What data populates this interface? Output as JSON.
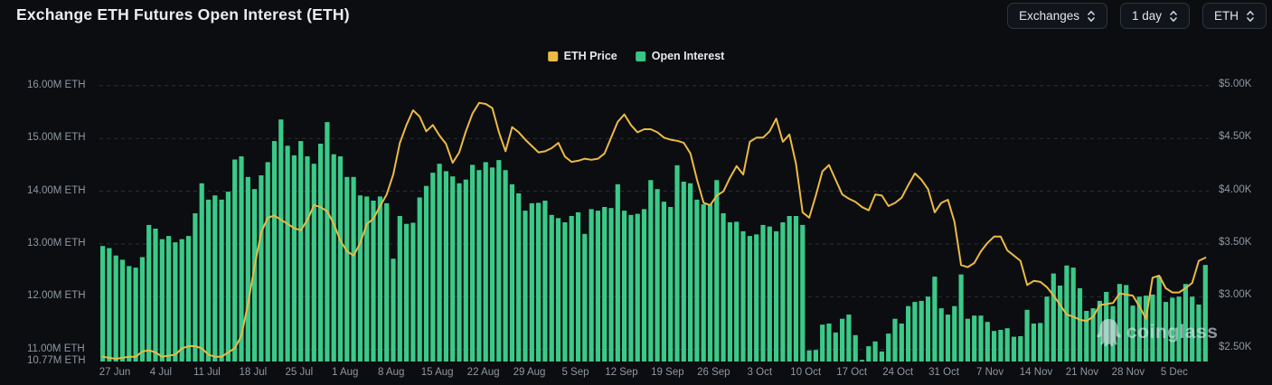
{
  "header": {
    "title": "Exchange ETH Futures Open Interest (ETH)"
  },
  "controls": [
    {
      "label": "Exchanges"
    },
    {
      "label": "1 day"
    },
    {
      "label": "ETH"
    }
  ],
  "legend": [
    {
      "label": "ETH Price",
      "color": "#ecba45"
    },
    {
      "label": "Open Interest",
      "color": "#38c783"
    }
  ],
  "watermark": {
    "text": "coinglass"
  },
  "colors": {
    "background": "#0b0d10",
    "gridline": "#2a2f37",
    "axis_text": "#8f97a1",
    "title_text": "#eaecef",
    "bar_green": "#3bc988",
    "line_yellow": "#ecba45"
  },
  "chart_data": {
    "type": "bar",
    "subtype": "bar+line dual-axis time series",
    "title": "Exchange ETH Futures Open Interest (ETH)",
    "interval": "daily",
    "x_start": "27 Jun",
    "x_end": "11 Dec",
    "grid": "horizontal dashed",
    "legend_position": "top-center",
    "x_tick_labels": [
      "27 Jun",
      "4 Jul",
      "11 Jul",
      "18 Jul",
      "25 Jul",
      "1 Aug",
      "8 Aug",
      "15 Aug",
      "22 Aug",
      "29 Aug",
      "5 Sep",
      "12 Sep",
      "19 Sep",
      "26 Sep",
      "3 Oct",
      "10 Oct",
      "17 Oct",
      "24 Oct",
      "31 Oct",
      "7 Nov",
      "14 Nov",
      "21 Nov",
      "28 Nov",
      "5 Dec"
    ],
    "left_axis": {
      "name": "Open Interest",
      "unit": "M ETH",
      "min": 10.77,
      "max": 16.0,
      "ticks": [
        {
          "label": "16.00M ETH",
          "value": 16.0,
          "grid": true
        },
        {
          "label": "15.00M ETH",
          "value": 15.0,
          "grid": true
        },
        {
          "label": "14.00M ETH",
          "value": 14.0,
          "grid": true
        },
        {
          "label": "13.00M ETH",
          "value": 13.0,
          "grid": true
        },
        {
          "label": "12.00M ETH",
          "value": 12.0,
          "grid": true
        },
        {
          "label": "11.00M ETH",
          "value": 11.0,
          "grid": true
        },
        {
          "label": "10.77M ETH",
          "value": 10.77,
          "grid": false
        }
      ]
    },
    "right_axis": {
      "name": "ETH Price",
      "unit": "$K",
      "min": 2.5,
      "max": 5.0,
      "ticks": [
        {
          "label": "$5.00K",
          "value": 5.0
        },
        {
          "label": "$4.50K",
          "value": 4.5
        },
        {
          "label": "$4.00K",
          "value": 4.0
        },
        {
          "label": "$3.50K",
          "value": 3.5
        },
        {
          "label": "$3.00K",
          "value": 3.0
        },
        {
          "label": "$2.50K",
          "value": 2.5
        }
      ]
    },
    "series": [
      {
        "name": "ETH Price",
        "type": "line",
        "axis": "right",
        "unit": "$K",
        "color": "#ecba45",
        "values": [
          2.42,
          2.41,
          2.4,
          2.41,
          2.42,
          2.42,
          2.47,
          2.48,
          2.46,
          2.42,
          2.43,
          2.44,
          2.5,
          2.52,
          2.52,
          2.5,
          2.44,
          2.42,
          2.42,
          2.46,
          2.5,
          2.62,
          2.92,
          3.28,
          3.6,
          3.74,
          3.76,
          3.72,
          3.68,
          3.64,
          3.62,
          3.72,
          3.86,
          3.84,
          3.8,
          3.68,
          3.52,
          3.42,
          3.38,
          3.5,
          3.68,
          3.73,
          3.85,
          3.96,
          4.15,
          4.45,
          4.62,
          4.76,
          4.7,
          4.56,
          4.62,
          4.52,
          4.44,
          4.26,
          4.36,
          4.56,
          4.73,
          4.83,
          4.82,
          4.78,
          4.55,
          4.37,
          4.6,
          4.55,
          4.48,
          4.42,
          4.36,
          4.37,
          4.4,
          4.45,
          4.32,
          4.27,
          4.28,
          4.3,
          4.29,
          4.3,
          4.35,
          4.5,
          4.65,
          4.72,
          4.62,
          4.55,
          4.58,
          4.58,
          4.55,
          4.5,
          4.48,
          4.47,
          4.45,
          4.35,
          4.1,
          3.88,
          3.86,
          3.95,
          3.99,
          4.12,
          4.23,
          4.15,
          4.46,
          4.5,
          4.5,
          4.56,
          4.68,
          4.46,
          4.53,
          4.25,
          3.79,
          3.74,
          3.95,
          4.18,
          4.24,
          4.1,
          3.96,
          3.92,
          3.89,
          3.84,
          3.81,
          3.96,
          3.95,
          3.85,
          3.88,
          3.93,
          4.05,
          4.16,
          4.1,
          4.01,
          3.79,
          3.88,
          3.91,
          3.7,
          3.29,
          3.27,
          3.31,
          3.42,
          3.5,
          3.56,
          3.56,
          3.43,
          3.38,
          3.33,
          3.1,
          3.14,
          3.13,
          3.08,
          3.0,
          2.91,
          2.82,
          2.8,
          2.77,
          2.76,
          2.8,
          2.91,
          2.92,
          2.93,
          3.02,
          3.01,
          3.0,
          2.9,
          2.78,
          3.17,
          3.19,
          3.07,
          3.03,
          3.03,
          3.07,
          3.12,
          3.33,
          3.36
        ]
      },
      {
        "name": "Open Interest",
        "type": "bar",
        "axis": "left",
        "unit": "M ETH",
        "color": "#3bc988",
        "values": [
          12.96,
          12.92,
          12.78,
          12.7,
          12.58,
          12.55,
          12.75,
          13.36,
          13.29,
          13.09,
          13.15,
          13.03,
          13.09,
          13.15,
          13.58,
          14.15,
          13.84,
          13.92,
          13.84,
          13.99,
          14.6,
          14.66,
          14.27,
          14.04,
          14.3,
          14.55,
          14.95,
          15.36,
          14.86,
          14.68,
          14.95,
          14.66,
          14.52,
          14.9,
          15.31,
          14.7,
          14.66,
          14.27,
          14.27,
          13.92,
          13.9,
          13.82,
          13.9,
          13.77,
          12.72,
          13.53,
          13.38,
          13.4,
          13.88,
          14.1,
          14.35,
          14.52,
          14.38,
          14.28,
          14.15,
          14.22,
          14.5,
          14.4,
          14.55,
          14.45,
          14.59,
          14.4,
          14.13,
          13.96,
          13.63,
          13.77,
          13.78,
          13.82,
          13.55,
          13.49,
          13.41,
          13.53,
          13.6,
          13.19,
          13.66,
          13.63,
          13.7,
          13.68,
          14.13,
          13.63,
          13.55,
          13.57,
          13.66,
          14.21,
          14.04,
          13.8,
          13.7,
          14.49,
          14.18,
          14.15,
          13.84,
          13.75,
          13.75,
          14.21,
          13.58,
          13.41,
          13.42,
          13.24,
          13.15,
          13.18,
          13.36,
          13.33,
          13.24,
          13.41,
          13.53,
          13.53,
          13.36,
          10.98,
          10.99,
          11.47,
          11.49,
          11.32,
          11.58,
          11.66,
          11.27,
          10.8,
          11.06,
          11.15,
          10.96,
          11.3,
          11.58,
          11.49,
          11.82,
          11.9,
          11.92,
          12.0,
          12.38,
          11.78,
          11.66,
          11.82,
          12.42,
          11.58,
          11.64,
          11.64,
          11.52,
          11.35,
          11.37,
          11.4,
          11.24,
          11.25,
          11.75,
          11.49,
          11.5,
          12.0,
          12.44,
          12.21,
          12.59,
          12.55,
          12.16,
          11.73,
          11.78,
          11.92,
          12.09,
          11.82,
          12.24,
          12.22,
          11.83,
          12.0,
          12.02,
          12.04,
          12.38,
          11.9,
          11.98,
          12.0,
          12.24,
          12.0,
          11.85,
          12.6
        ]
      }
    ]
  }
}
